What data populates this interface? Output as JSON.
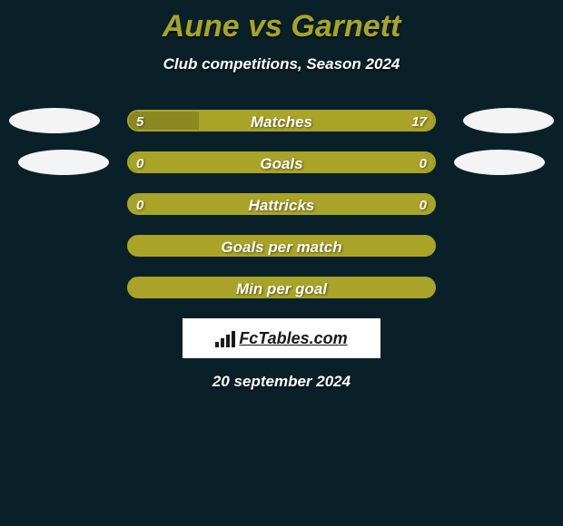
{
  "title": "Aune vs Garnett",
  "title_color": "#a9a427",
  "subtitle": "Club competitions, Season 2024",
  "date": "20 september 2024",
  "background_color": "#0a2028",
  "avatar_bg": "#f4f4f4",
  "bar_border_color": "#a9a427",
  "brand": {
    "text": "FcTables.com",
    "bg": "#ffffff",
    "fg": "#1a1a1a"
  },
  "rows": [
    {
      "label": "Matches",
      "left_value": "5",
      "right_value": "17",
      "left_pct": 23,
      "right_pct": 77,
      "left_color": "#8b8821",
      "right_color": "#a9a427",
      "show_left_avatar": true,
      "show_right_avatar": true
    },
    {
      "label": "Goals",
      "left_value": "0",
      "right_value": "0",
      "left_pct": 100,
      "right_pct": 0,
      "left_color": "#a9a427",
      "right_color": "#a9a427",
      "show_left_avatar": true,
      "show_right_avatar": true
    },
    {
      "label": "Hattricks",
      "left_value": "0",
      "right_value": "0",
      "left_pct": 0,
      "right_pct": 0,
      "left_color": "#a9a427",
      "right_color": "#a9a427",
      "show_left_avatar": false,
      "show_right_avatar": false
    },
    {
      "label": "Goals per match",
      "left_value": "",
      "right_value": "",
      "left_pct": 0,
      "right_pct": 0,
      "left_color": "#a9a427",
      "right_color": "#a9a427",
      "show_left_avatar": false,
      "show_right_avatar": false
    },
    {
      "label": "Min per goal",
      "left_value": "",
      "right_value": "",
      "left_pct": 0,
      "right_pct": 0,
      "left_color": "#a9a427",
      "right_color": "#a9a427",
      "show_left_avatar": false,
      "show_right_avatar": false
    }
  ]
}
